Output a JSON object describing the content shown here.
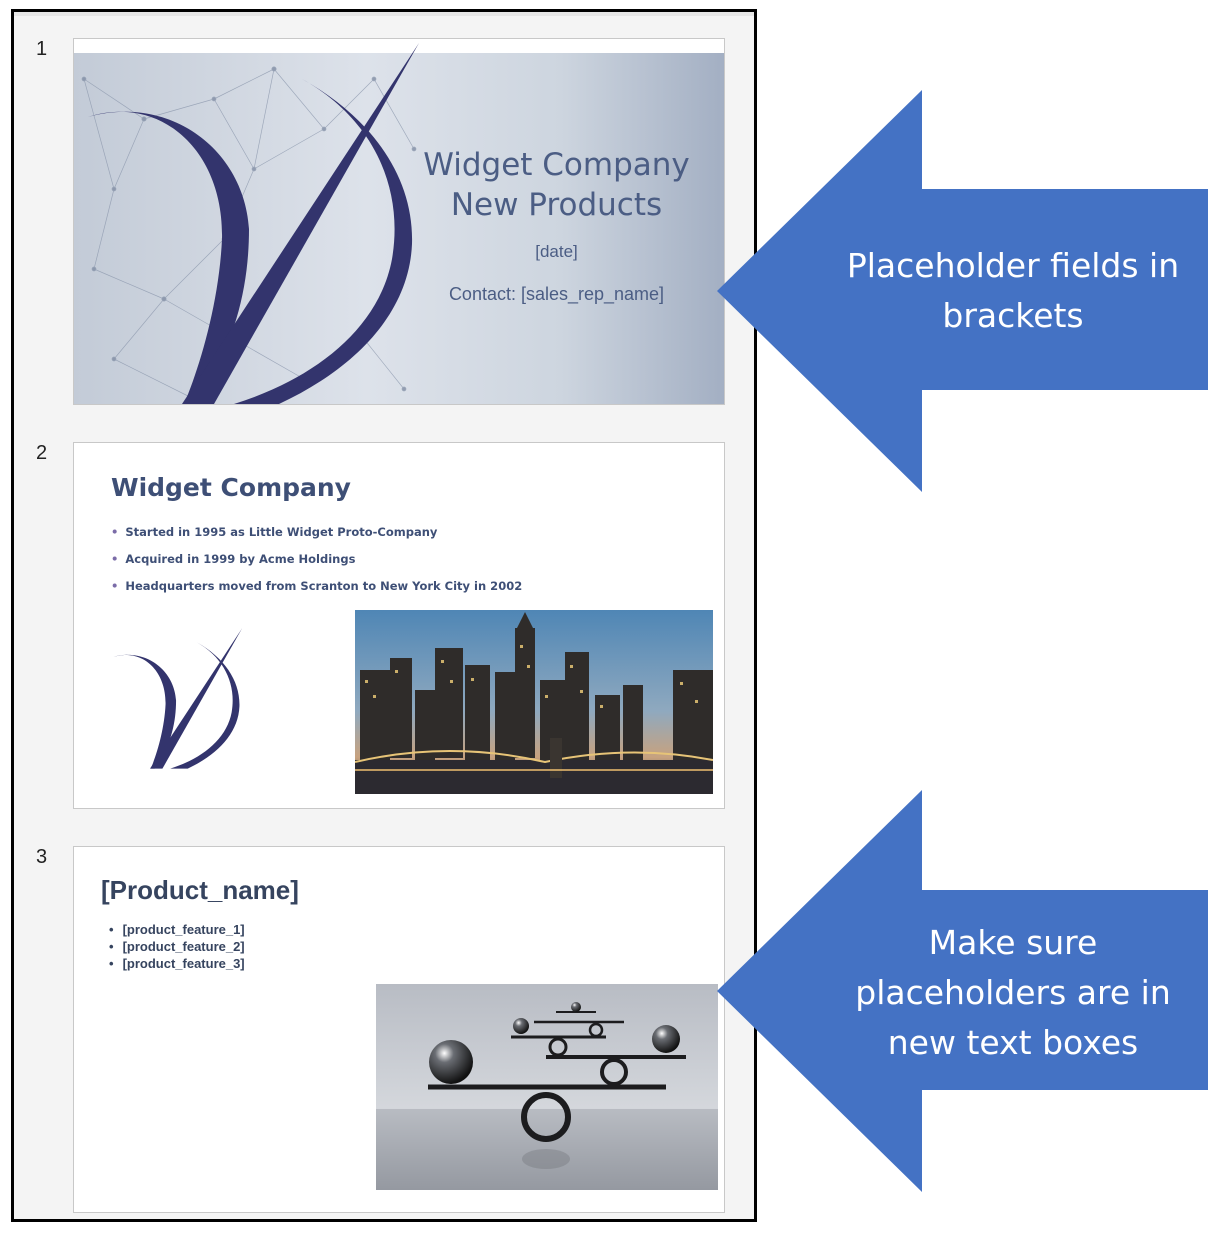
{
  "panel": {
    "slides": [
      {
        "number": "1",
        "title_line1": "Widget Company",
        "title_line2": "New Products",
        "date": "[date]",
        "contact": "Contact: [sales_rep_name]"
      },
      {
        "number": "2",
        "title": "Widget Company",
        "bullets": [
          "Started in 1995 as Little Widget Proto-Company",
          "Acquired in 1999  by Acme Holdings",
          "Headquarters moved from Scranton to New York City in 2002"
        ],
        "image": "city-skyline-photo"
      },
      {
        "number": "3",
        "title": "[Product_name]",
        "bullets": [
          "[product_feature_1]",
          "[product_feature_2]",
          "[product_feature_3]"
        ],
        "image": "balance-spheres-photo"
      }
    ]
  },
  "callouts": {
    "top": {
      "line1": "Placeholder fields in",
      "line2": "brackets"
    },
    "bottom": {
      "line1": "Make sure",
      "line2": "placeholders are in",
      "line3": "new text boxes"
    }
  },
  "colors": {
    "arrow_fill": "#4472c4",
    "brand_navy": "#33346d",
    "title_text": "#4b5d84"
  },
  "bullet_glyph": "•"
}
